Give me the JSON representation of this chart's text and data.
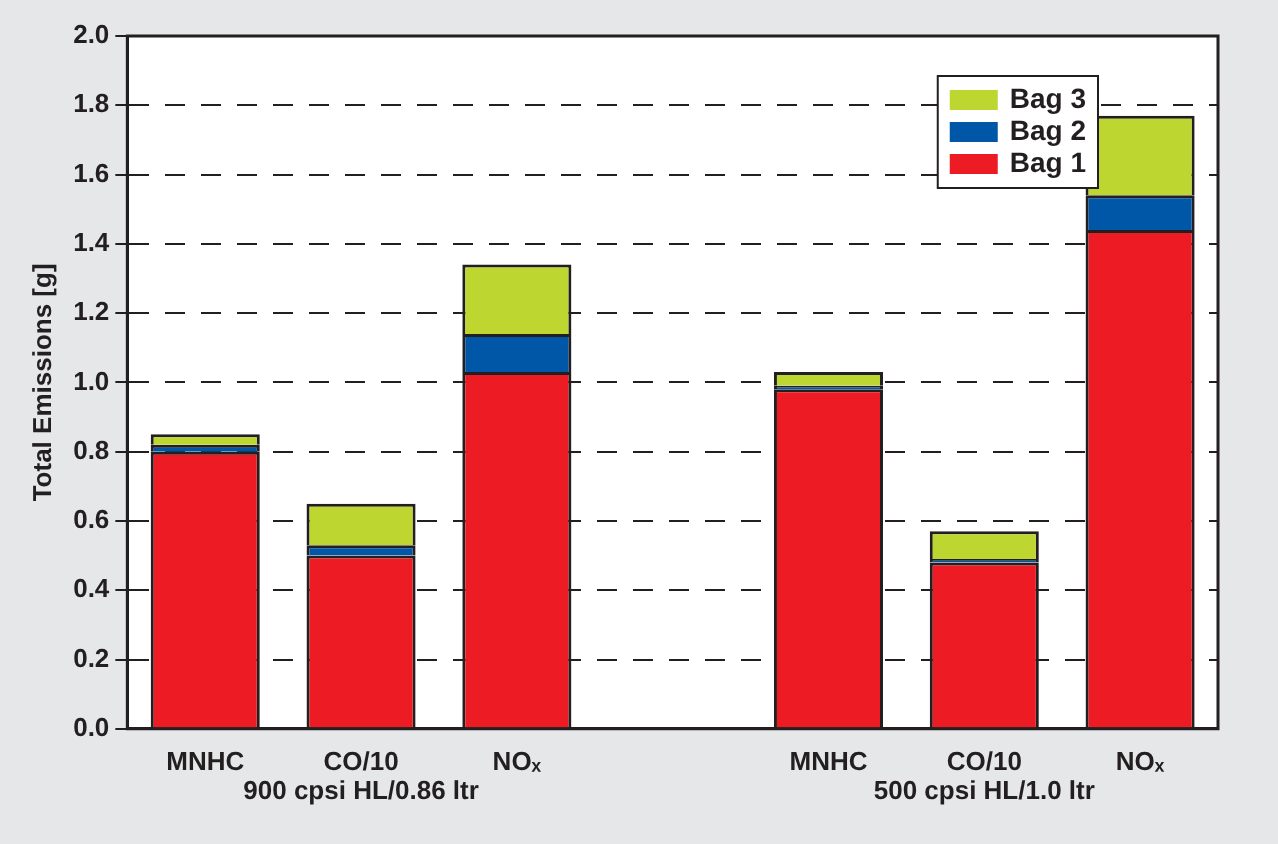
{
  "chart_data": {
    "type": "bar",
    "ylabel": "Total Emissions [g]",
    "categories": [
      "MNHC",
      "CO/10",
      "NOₓ",
      null,
      "MNHC",
      "CO/10",
      "NOₓ"
    ],
    "series": [
      {
        "name": "Bag 1",
        "color": "#ed1c24",
        "values": [
          0.8,
          0.5,
          1.03,
          null,
          0.98,
          0.48,
          1.44
        ]
      },
      {
        "name": "Bag 2",
        "color": "#0057a8",
        "values": [
          0.02,
          0.03,
          0.11,
          null,
          0.01,
          0.01,
          0.1
        ]
      },
      {
        "name": "Bag 3",
        "color": "#bed630",
        "values": [
          0.03,
          0.12,
          0.2,
          null,
          0.04,
          0.08,
          0.23
        ]
      }
    ],
    "stacked": true,
    "ylim": [
      0,
      2.0
    ],
    "yticks": [
      {
        "value": 0,
        "label": "0.0"
      },
      {
        "value": 0.2,
        "label": "0.2"
      },
      {
        "value": 0.4,
        "label": "0.4"
      },
      {
        "value": 0.6,
        "label": "0.6"
      },
      {
        "value": 0.8,
        "label": "0.8"
      },
      {
        "value": 1.0,
        "label": "1.0"
      },
      {
        "value": 1.2,
        "label": "1.2"
      },
      {
        "value": 1.4,
        "label": "1.4"
      },
      {
        "value": 1.6,
        "label": "1.6"
      },
      {
        "value": 1.8,
        "label": "1.8"
      },
      {
        "value": 2.0,
        "label": "2.0"
      }
    ],
    "grid": "y",
    "legend": "top right",
    "annotations": [
      "900 cpsi HL/0.86 ltr",
      "500 cpsi HL/1.0 ltr"
    ]
  }
}
